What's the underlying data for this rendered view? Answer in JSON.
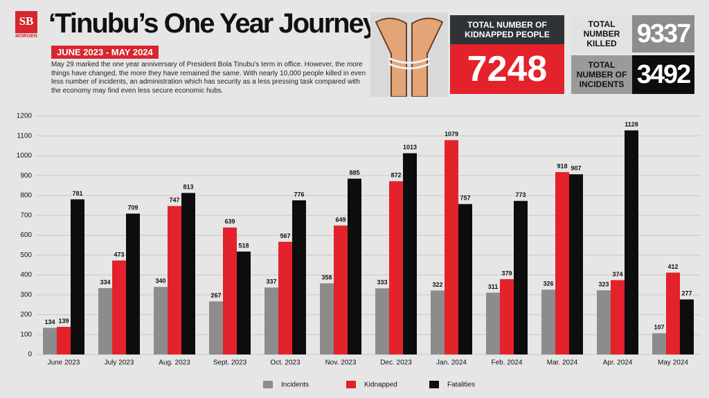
{
  "header": {
    "logo": "SB",
    "logo_sub": "MORGEN",
    "title": "‘Tinubu’s One Year Journey’",
    "subtitle": "JUNE 2023 - MAY 2024",
    "description": "May 29 marked the one year anniversary of President Bola Tinubu's term in office. However, the more things have changed, the more they have remained the same. With nearly 10,000 people killed in even less number of incidents, an administration which has security as a less pressing task compared with the economy may find even less secure economic hubs."
  },
  "stats": {
    "kidnapped_label": "TOTAL NUMBER OF KIDNAPPED PEOPLE",
    "kidnapped_value": "7248",
    "killed_label": "TOTAL NUMBER KILLED",
    "killed_value": "9337",
    "incidents_label": "TOTAL NUMBER OF INCIDENTS",
    "incidents_value": "3492"
  },
  "chart_data": {
    "type": "bar",
    "categories": [
      "June 2023",
      "July 2023",
      "Aug. 2023",
      "Sept. 2023",
      "Oct. 2023",
      "Nov. 2023",
      "Dec. 2023",
      "Jan. 2024",
      "Feb. 2024",
      "Mar. 2024",
      "Apr. 2024",
      "May 2024"
    ],
    "series": [
      {
        "name": "Incidents",
        "color": "#8c8c8c",
        "values": [
          134,
          334,
          340,
          267,
          337,
          358,
          333,
          322,
          311,
          326,
          323,
          107
        ]
      },
      {
        "name": "Kidnapped",
        "color": "#e3222b",
        "values": [
          139,
          473,
          747,
          639,
          567,
          649,
          872,
          1079,
          379,
          918,
          374,
          412
        ]
      },
      {
        "name": "Fatalities",
        "color": "#0d0d0d",
        "values": [
          781,
          709,
          813,
          518,
          776,
          885,
          1013,
          757,
          773,
          907,
          1128,
          277
        ]
      }
    ],
    "ylim": [
      0,
      1200
    ],
    "yticks": [
      0,
      100,
      200,
      300,
      400,
      500,
      600,
      700,
      800,
      900,
      1000,
      1100,
      1200
    ],
    "grid": true
  }
}
